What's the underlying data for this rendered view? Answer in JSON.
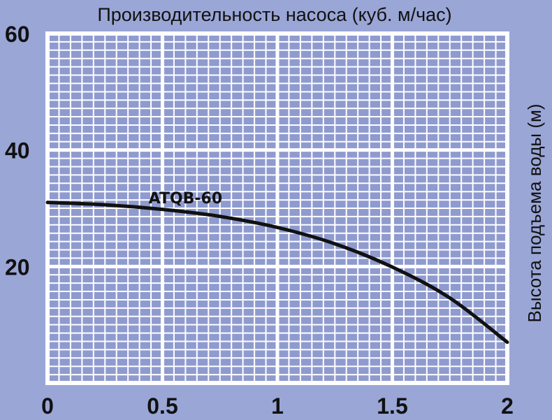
{
  "chart_data": {
    "type": "line",
    "title": "Производительность насоса (куб. м/час)",
    "xlabel": "",
    "ylabel": "Высота подъема воды (м)",
    "xlim": [
      0,
      2
    ],
    "ylim": [
      0,
      60
    ],
    "x_ticks": [
      "0",
      "0.5",
      "1",
      "1.5",
      "2"
    ],
    "y_ticks": [
      "20",
      "40",
      "60"
    ],
    "grid": true,
    "series": [
      {
        "name": "ATQB-60",
        "x": [
          0,
          0.25,
          0.5,
          0.75,
          1.0,
          1.25,
          1.5,
          1.75,
          2.0
        ],
        "y": [
          31.0,
          30.6,
          29.8,
          28.6,
          26.7,
          23.9,
          19.9,
          14.6,
          7.0
        ]
      }
    ],
    "colors": {
      "background": "#9aa6d6",
      "cell": "#8f9bcf",
      "grid": "#ffffff",
      "line": "#111111"
    }
  }
}
